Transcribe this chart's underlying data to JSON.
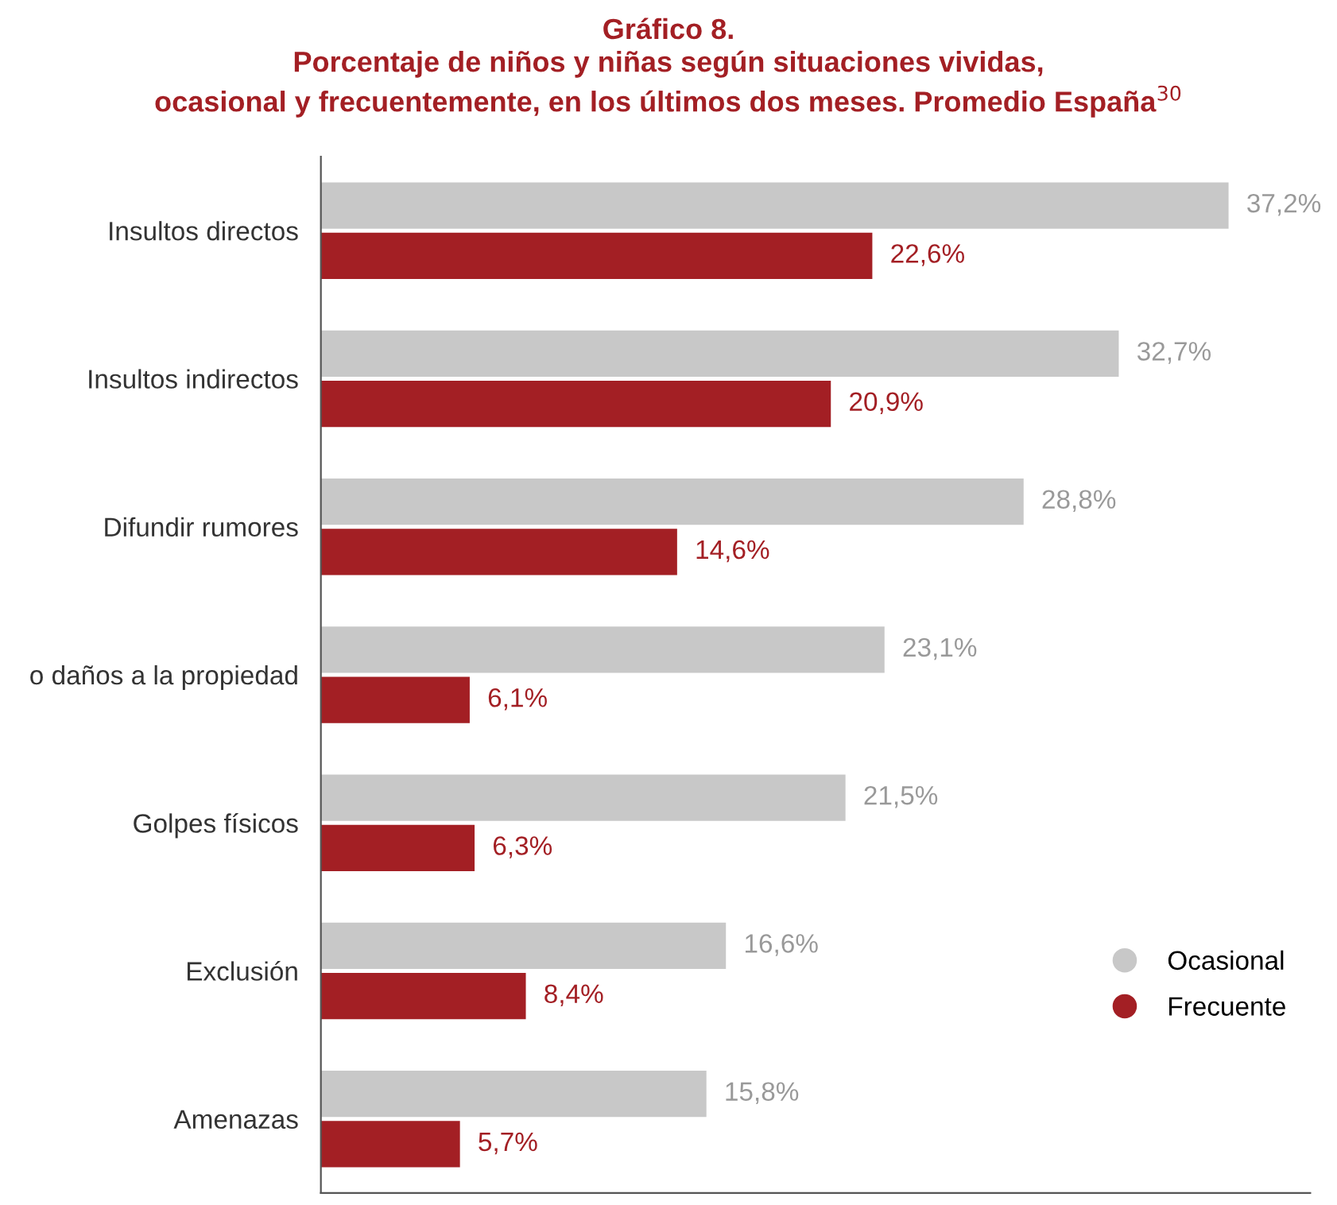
{
  "chart_data": {
    "type": "bar",
    "orientation": "horizontal",
    "title": "Gráfico 8.",
    "subtitle": "Porcentaje de niños y niñas según situaciones vividas,\nocasional y frecuentemente, en los últimos dos meses. Promedio España$^{30}$",
    "categories": [
      "Insultos directos",
      "Insultos indirectos",
      "Difundir rumores",
      "o daños a la propiedad",
      "Golpes físicos",
      "Exclusión",
      "Amenazas"
    ],
    "series": [
      {
        "name": "Ocasional",
        "color": "#c8c8c8",
        "values": [
          37.2,
          32.7,
          28.8,
          23.1,
          21.5,
          16.6,
          15.8
        ],
        "value_labels": [
          "37,2%",
          "32,7%",
          "28,8%",
          "23,1%",
          "21,5%",
          "16,6%",
          "15,8%"
        ]
      },
      {
        "name": "Frecuente",
        "color": "#a31f24",
        "values": [
          22.6,
          20.9,
          14.6,
          6.1,
          6.3,
          8.4,
          5.7
        ],
        "value_labels": [
          "22,6%",
          "20,9%",
          "14,6%",
          "6,1%",
          "6,3%",
          "8,4%",
          "5,7%"
        ]
      }
    ],
    "relative": false,
    "legend": "right",
    "marker": "circle",
    "grid": false
  }
}
